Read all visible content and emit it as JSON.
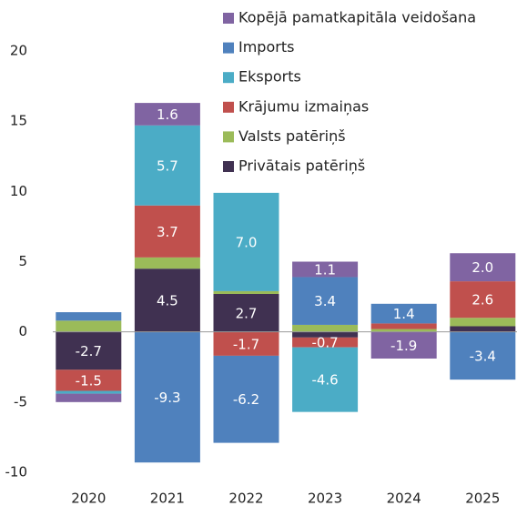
{
  "chart_data": {
    "type": "stacked_bar",
    "categories": [
      "2020",
      "2021",
      "2022",
      "2023",
      "2024",
      "2025"
    ],
    "series": [
      {
        "name": "Kopējā pamatkapitāla veidošana",
        "color": "#8064a2",
        "values": [
          -0.6,
          1.6,
          null,
          1.1,
          -1.9,
          2.0
        ],
        "value_labels": [
          null,
          "1.6",
          null,
          "1.1",
          "-1.9",
          "2.0"
        ]
      },
      {
        "name": "Imports",
        "color": "#4f81bd",
        "values": [
          0.6,
          -9.3,
          -6.2,
          3.4,
          1.4,
          -3.4
        ],
        "value_labels": [
          null,
          "-9.3",
          "-6.2",
          "3.4",
          "1.4",
          "-3.4"
        ]
      },
      {
        "name": "Eksports",
        "color": "#4bacc6",
        "values": [
          -0.2,
          5.7,
          7.0,
          -4.6,
          null,
          null
        ],
        "value_labels": [
          null,
          "5.7",
          "7.0",
          "-4.6",
          null,
          null
        ]
      },
      {
        "name": "Krājumu izmaiņas",
        "color": "#c0504d",
        "values": [
          -1.5,
          3.7,
          -1.7,
          -0.7,
          0.4,
          2.6
        ],
        "value_labels": [
          "-1.5",
          "3.7",
          "-1.7",
          "-0.7",
          null,
          "2.6"
        ]
      },
      {
        "name": "Valsts patēriņš",
        "color": "#9bbb59",
        "values": [
          0.8,
          0.8,
          0.2,
          0.5,
          0.2,
          0.6
        ],
        "value_labels": [
          null,
          null,
          null,
          null,
          null,
          null
        ]
      },
      {
        "name": "Privātais patēriņš",
        "color": "#403151",
        "values": [
          -2.7,
          4.5,
          2.7,
          -0.4,
          null,
          0.4
        ],
        "value_labels": [
          "-2.7",
          "4.5",
          "2.7",
          null,
          null,
          null
        ]
      }
    ],
    "ylim": [
      -10,
      20
    ],
    "yticks": [
      20,
      15,
      10,
      5,
      0,
      -5,
      -10
    ]
  }
}
